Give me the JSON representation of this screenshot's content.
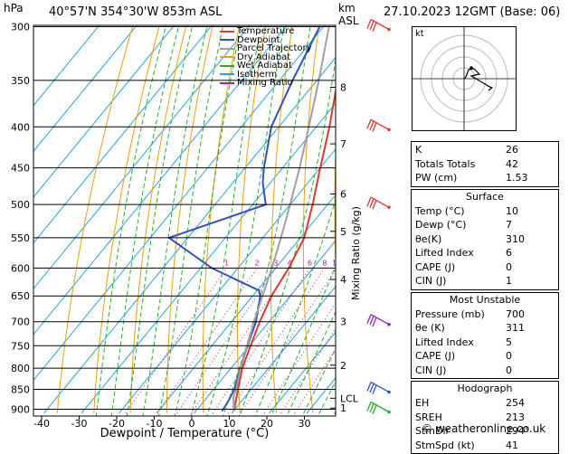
{
  "header": {
    "hpa_label": "hPa",
    "location": "40°57'N  354°30'W  853m  ASL",
    "km_label": "km",
    "asl_label": "ASL",
    "datetime": "27.10.2023  12GMT  (Base: 06)"
  },
  "legend": [
    {
      "label": "Temperature",
      "color": "#e8352e"
    },
    {
      "label": "Dewpoint",
      "color": "#2f51c9"
    },
    {
      "label": "Parcel Trajectory",
      "color": "#a0a0a0"
    },
    {
      "label": "Dry Adiabat",
      "color": "#f0a000"
    },
    {
      "label": "Wet Adiabat",
      "color": "#22b322"
    },
    {
      "label": "Isotherm",
      "color": "#1ea7e6"
    },
    {
      "label": "Mixing Ratio",
      "color": "#c0168f"
    }
  ],
  "hodograph": {
    "label": "kt"
  },
  "indices": [
    {
      "label": "K",
      "value": "26"
    },
    {
      "label": "Totals Totals",
      "value": "42"
    },
    {
      "label": "PW (cm)",
      "value": "1.53"
    }
  ],
  "surface": {
    "title": "Surface",
    "rows": [
      {
        "label": "Temp (°C)",
        "value": "10"
      },
      {
        "label": "Dewp (°C)",
        "value": "7"
      },
      {
        "label": "θe(K)",
        "value": "310"
      },
      {
        "label": "Lifted Index",
        "value": "6"
      },
      {
        "label": "CAPE (J)",
        "value": "0"
      },
      {
        "label": "CIN (J)",
        "value": "1"
      }
    ]
  },
  "most_unstable": {
    "title": "Most Unstable",
    "rows": [
      {
        "label": "Pressure (mb)",
        "value": "700"
      },
      {
        "label": "θe (K)",
        "value": "311"
      },
      {
        "label": "Lifted Index",
        "value": "5"
      },
      {
        "label": "CAPE (J)",
        "value": "0"
      },
      {
        "label": "CIN (J)",
        "value": "0"
      }
    ]
  },
  "hodograph_table": {
    "title": "Hodograph",
    "rows": [
      {
        "label": "EH",
        "value": "254"
      },
      {
        "label": "SREH",
        "value": "213"
      },
      {
        "label": "StmDir",
        "value": "294°"
      },
      {
        "label": "StmSpd (kt)",
        "value": "41"
      }
    ]
  },
  "footer": "© weatheronline.co.uk",
  "chart_data": {
    "type": "line",
    "xlabel": "Dewpoint / Temperature (°C)",
    "ylabel_right": "Mixing Ratio (g/kg)",
    "x_ticks": [
      -40,
      -30,
      -20,
      -10,
      0,
      10,
      20,
      30
    ],
    "xlim": [
      -42,
      37
    ],
    "pressure_levels": [
      300,
      350,
      400,
      450,
      500,
      550,
      600,
      650,
      700,
      750,
      800,
      850,
      900
    ],
    "height_km_labels": [
      {
        "p": 357,
        "label": "8"
      },
      {
        "p": 420,
        "label": "7"
      },
      {
        "p": 485,
        "label": "6"
      },
      {
        "p": 540,
        "label": "5"
      },
      {
        "p": 620,
        "label": "4"
      },
      {
        "p": 700,
        "label": "3"
      },
      {
        "p": 793,
        "label": "2"
      },
      {
        "p": 872,
        "label": "LCL"
      },
      {
        "p": 897,
        "label": "1"
      }
    ],
    "mixing_ratio_labels": [
      "1",
      "2",
      "3",
      "4",
      "6",
      "8",
      "10",
      "15",
      "20",
      "25"
    ],
    "mixing_ratio_values": [
      1,
      2,
      3,
      4,
      6,
      8,
      10,
      15,
      20,
      25
    ],
    "series": [
      {
        "name": "Temperature",
        "color": "#e8352e",
        "points": [
          [
            905,
            10.2
          ],
          [
            880,
            8.5
          ],
          [
            850,
            6.5
          ],
          [
            800,
            3.0
          ],
          [
            750,
            0.3
          ],
          [
            700,
            -2.5
          ],
          [
            650,
            -5.0
          ],
          [
            600,
            -6.5
          ],
          [
            550,
            -9.0
          ],
          [
            500,
            -14.0
          ],
          [
            450,
            -20.0
          ],
          [
            400,
            -26.5
          ],
          [
            350,
            -34.5
          ],
          [
            300,
            -43.0
          ]
        ]
      },
      {
        "name": "Dewpoint",
        "color": "#2f51c9",
        "points": [
          [
            905,
            7.0
          ],
          [
            880,
            6.5
          ],
          [
            850,
            5.5
          ],
          [
            800,
            2.5
          ],
          [
            750,
            -0.5
          ],
          [
            700,
            -3.5
          ],
          [
            650,
            -8.0
          ],
          [
            640,
            -9.5
          ],
          [
            600,
            -27.0
          ],
          [
            550,
            -45.0
          ],
          [
            500,
            -26.5
          ],
          [
            470,
            -32.0
          ],
          [
            450,
            -35.0
          ],
          [
            400,
            -42.0
          ],
          [
            350,
            -46.5
          ],
          [
            300,
            -51.0
          ]
        ]
      },
      {
        "name": "Parcel Trajectory",
        "color": "#a0a0a0",
        "points": [
          [
            905,
            10.2
          ],
          [
            870,
            7.0
          ],
          [
            850,
            6.0
          ],
          [
            800,
            2.6
          ],
          [
            750,
            -0.6
          ],
          [
            700,
            -4.0
          ],
          [
            650,
            -7.4
          ],
          [
            600,
            -11.0
          ],
          [
            550,
            -15.2
          ],
          [
            500,
            -20.0
          ],
          [
            450,
            -25.5
          ],
          [
            400,
            -32.0
          ],
          [
            350,
            -39.5
          ],
          [
            300,
            -48.5
          ]
        ]
      }
    ],
    "wind_barbs_p": [
      300,
      400,
      500,
      700,
      850,
      900
    ]
  }
}
